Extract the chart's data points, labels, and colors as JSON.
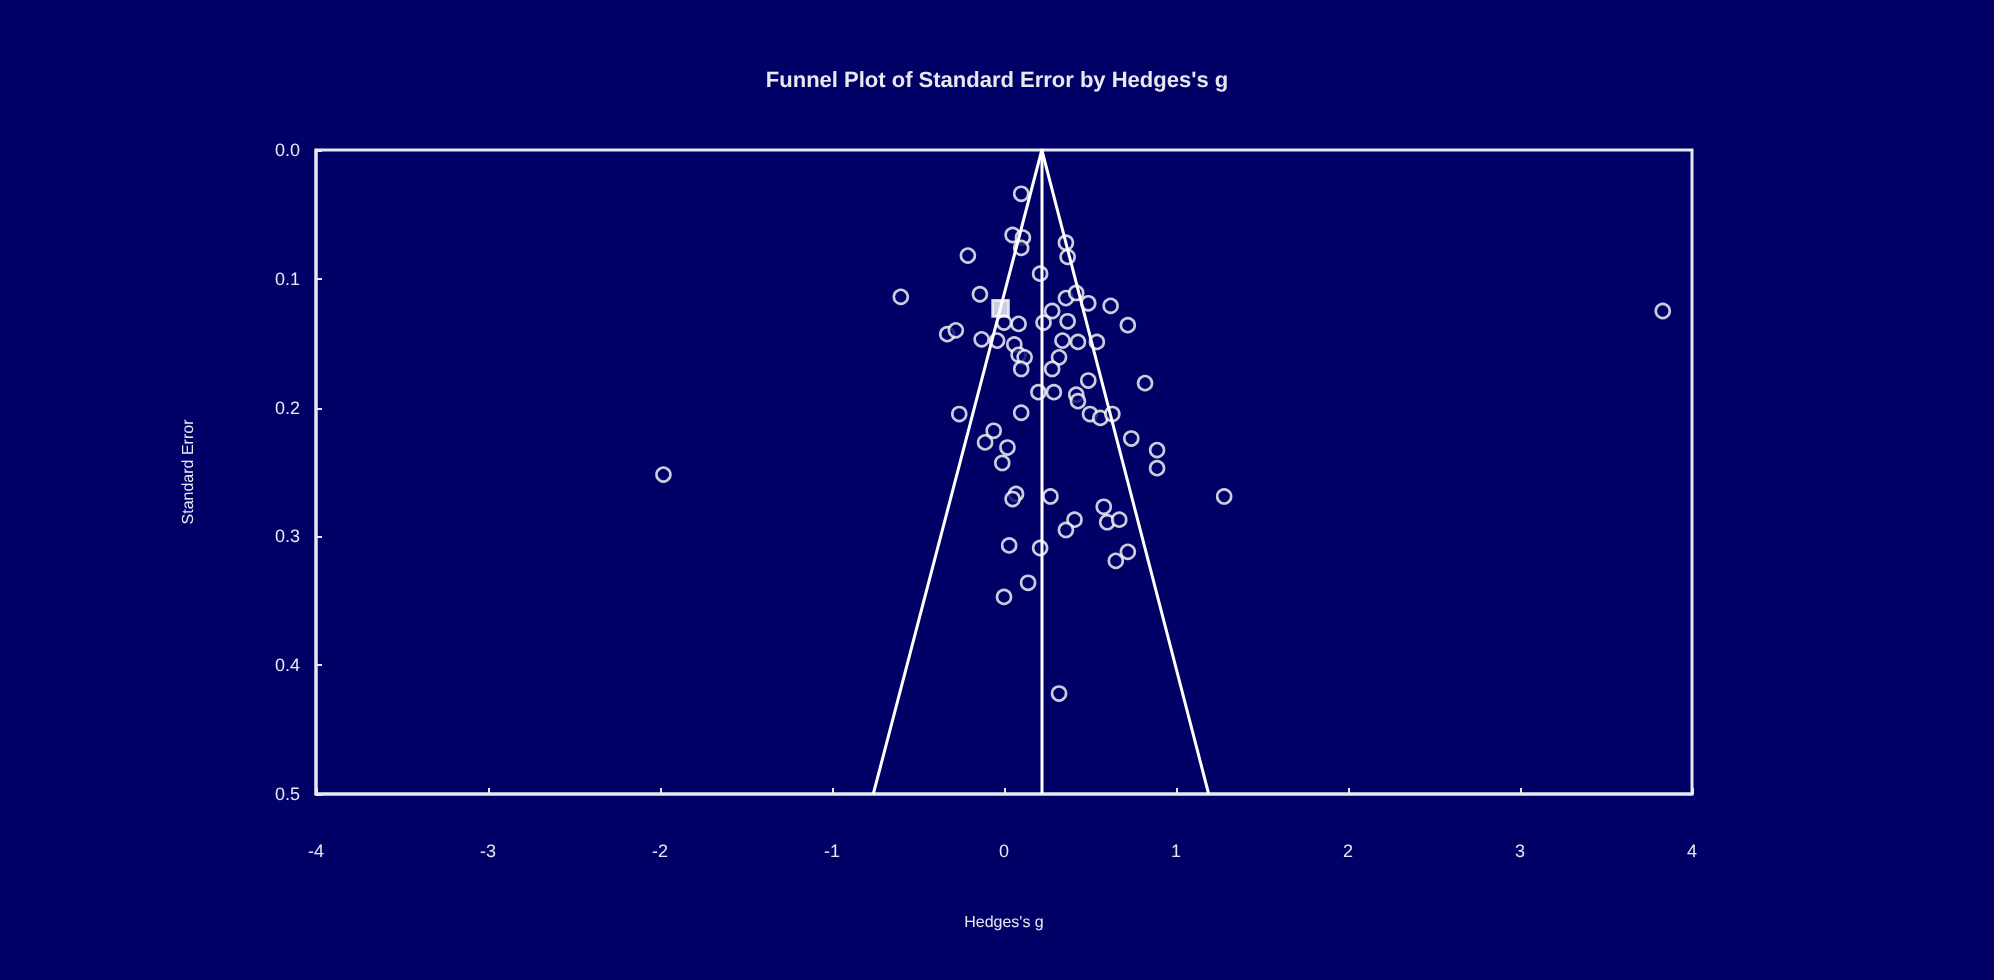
{
  "chart_data": {
    "type": "scatter",
    "title": "Funnel Plot of Standard Error by Hedges's g",
    "xlabel": "Hedges's g",
    "ylabel": "Standard Error",
    "xlim": [
      -4,
      4
    ],
    "xticks": [
      -4,
      -3,
      -2,
      -1,
      0,
      1,
      2,
      3,
      4
    ],
    "ylim": [
      0.5,
      0
    ],
    "yticks": [
      {
        "value": 0,
        "label": "0.0"
      },
      0.1,
      0.2,
      0.3,
      0.4,
      0.5
    ],
    "grid": false,
    "marker": "circle",
    "ref_lines": [
      {
        "axis": "x",
        "value": 0.22,
        "color": "#ffffff"
      }
    ],
    "series": [
      {
        "color": "#ffffff",
        "x": [
          0.1,
          0.05,
          0.11,
          0.1,
          0.36,
          0.37,
          -0.21,
          0.21,
          -0.6,
          -0.14,
          0.36,
          0.42,
          0.49,
          0.62,
          0.72,
          0.28,
          0.37,
          0.23,
          0.085,
          0.0,
          -0.33,
          -0.28,
          -0.13,
          -0.04,
          0.06,
          0.34,
          0.43,
          0.54,
          0.085,
          0.12,
          0.32,
          0.1,
          0.28,
          0.82,
          0.49,
          0.2,
          0.29,
          0.42,
          0.43,
          -0.26,
          0.1,
          0.5,
          0.56,
          0.63,
          0.74,
          -0.06,
          -0.11,
          0.02,
          0.89,
          -0.01,
          0.89,
          1.28,
          0.07,
          0.05,
          0.27,
          0.58,
          0.41,
          0.36,
          0.6,
          0.67,
          0.03,
          0.21,
          0.72,
          0.65,
          0.14,
          0.0,
          0.32,
          -1.98,
          3.83
        ],
        "values": [
          0.034,
          0.066,
          0.068,
          0.076,
          0.072,
          0.083,
          0.082,
          0.096,
          0.114,
          0.112,
          0.115,
          0.111,
          0.119,
          0.121,
          0.136,
          0.125,
          0.133,
          0.134,
          0.135,
          0.134,
          0.143,
          0.14,
          0.147,
          0.148,
          0.151,
          0.148,
          0.149,
          0.149,
          0.159,
          0.161,
          0.161,
          0.17,
          0.17,
          0.181,
          0.179,
          0.188,
          0.188,
          0.19,
          0.195,
          0.205,
          0.204,
          0.205,
          0.208,
          0.205,
          0.224,
          0.218,
          0.227,
          0.231,
          0.233,
          0.243,
          0.247,
          0.269,
          0.267,
          0.271,
          0.269,
          0.277,
          0.287,
          0.295,
          0.289,
          0.287,
          0.307,
          0.309,
          0.312,
          0.319,
          0.336,
          0.347,
          0.422,
          0.252,
          0.125
        ]
      },
      {
        "color": "#ffffff",
        "marker": "square",
        "x": [
          -0.02
        ],
        "values": [
          0.123
        ]
      },
      {
        "type": "line",
        "color": "#ffffff",
        "marker": "none",
        "line_style": "solid",
        "x": [
          -0.76,
          0.22,
          1.19
        ],
        "values": [
          0.5,
          0,
          0.5
        ]
      }
    ]
  }
}
